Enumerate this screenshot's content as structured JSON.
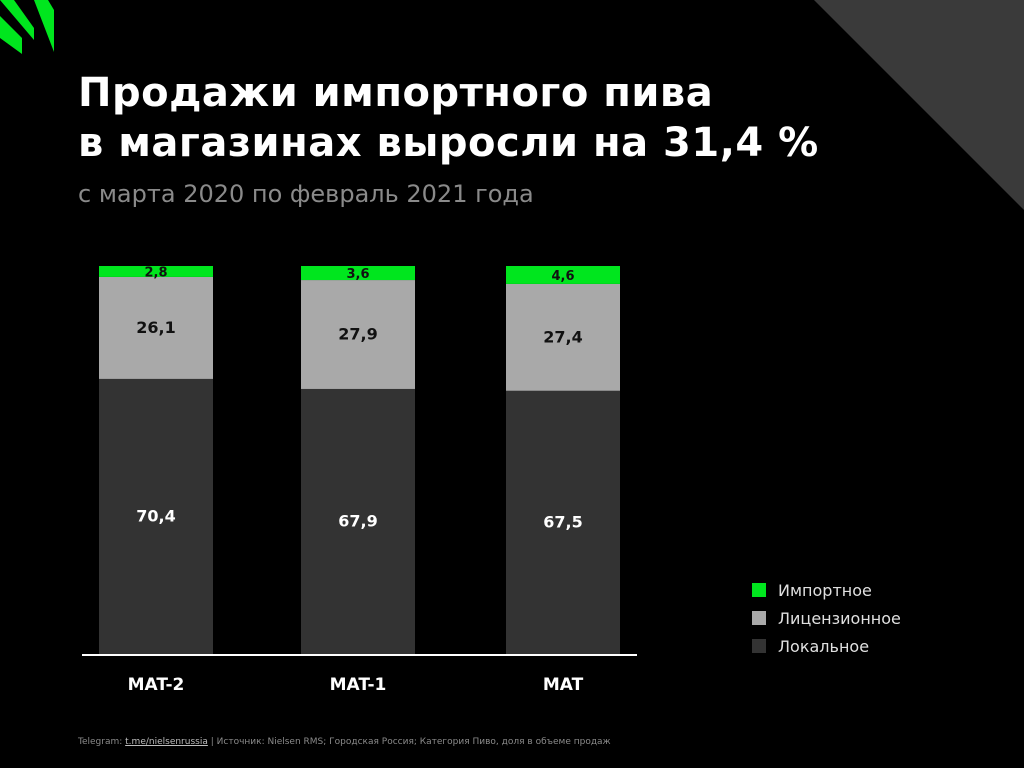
{
  "title_line1": "Продажи импортного пива",
  "title_line2": "в магазинах выросли на 31,4 %",
  "subtitle": "с марта 2020 по февраль 2021 года",
  "footer": {
    "prefix": "Telegram:",
    "link": "t.me/nielsenrussia",
    "separator": "|",
    "source": "Источник: Nielsen RMS; Городская Россия; Категория Пиво, доля в объеме продаж"
  },
  "colors": {
    "background": "#000000",
    "import": "#00e61e",
    "licensed": "#a9a9a9",
    "local": "#333333",
    "accent_corner": "#3a3a3a"
  },
  "chart_data": {
    "type": "bar",
    "stacked": true,
    "categories": [
      "MAT-2",
      "MAT-1",
      "MAT"
    ],
    "series": [
      {
        "name": "Локальное",
        "values": [
          70.4,
          67.9,
          67.5
        ],
        "labels": [
          "70,4",
          "67,9",
          "67,5"
        ],
        "color": "#333333"
      },
      {
        "name": "Лицензионное",
        "values": [
          26.1,
          27.9,
          27.4
        ],
        "labels": [
          "26,1",
          "27,9",
          "27,4"
        ],
        "color": "#a9a9a9"
      },
      {
        "name": "Импортное",
        "values": [
          2.8,
          3.6,
          4.6
        ],
        "labels": [
          "2,8",
          "3,6",
          "4,6"
        ],
        "color": "#00e61e"
      }
    ],
    "legend_order": [
      "Импортное",
      "Лицензионное",
      "Локальное"
    ],
    "legend_position": "right",
    "grid": false
  }
}
